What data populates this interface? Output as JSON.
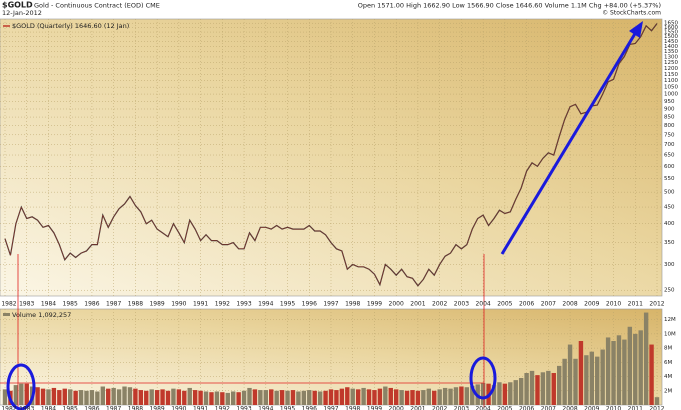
{
  "chart_data": [
    {
      "type": "line",
      "title": "$GOLD",
      "subtitle": "Gold - Continuous Contract (EOD) CME",
      "date": "12-Jan-2012",
      "quote": "Open 1571.00  High 1662.90  Low 1566.90  Close 1646.60  Volume 1.1M  Chg +84.00 (+5.37%)",
      "source": "© StockCharts.com",
      "x": [
        1982,
        1982.25,
        1982.5,
        1982.75,
        1983,
        1983.25,
        1983.5,
        1983.75,
        1984,
        1984.25,
        1984.5,
        1984.75,
        1985,
        1985.25,
        1985.5,
        1985.75,
        1986,
        1986.25,
        1986.5,
        1986.75,
        1987,
        1987.25,
        1987.5,
        1987.75,
        1988,
        1988.25,
        1988.5,
        1988.75,
        1989,
        1989.25,
        1989.5,
        1989.75,
        1990,
        1990.25,
        1990.5,
        1990.75,
        1991,
        1991.25,
        1991.5,
        1991.75,
        1992,
        1992.25,
        1992.5,
        1992.75,
        1993,
        1993.25,
        1993.5,
        1993.75,
        1994,
        1994.25,
        1994.5,
        1994.75,
        1995,
        1995.25,
        1995.5,
        1995.75,
        1996,
        1996.25,
        1996.5,
        1996.75,
        1997,
        1997.25,
        1997.5,
        1997.75,
        1998,
        1998.25,
        1998.5,
        1998.75,
        1999,
        1999.25,
        1999.5,
        1999.75,
        2000,
        2000.25,
        2000.5,
        2000.75,
        2001,
        2001.25,
        2001.5,
        2001.75,
        2002,
        2002.25,
        2002.5,
        2002.75,
        2003,
        2003.25,
        2003.5,
        2003.75,
        2004,
        2004.25,
        2004.5,
        2004.75,
        2005,
        2005.25,
        2005.5,
        2005.75,
        2006,
        2006.25,
        2006.5,
        2006.75,
        2007,
        2007.25,
        2007.5,
        2007.75,
        2008,
        2008.25,
        2008.5,
        2008.75,
        2009,
        2009.25,
        2009.5,
        2009.75,
        2010,
        2010.25,
        2010.5,
        2010.75,
        2011,
        2011.25,
        2011.5,
        2011.75,
        2012
      ],
      "series": [
        {
          "name": "$GOLD (Quarterly) 1646.60 (12 Jan)",
          "color": "#c0392b",
          "line_color": "#333333",
          "values": [
            360,
            320,
            400,
            450,
            415,
            420,
            410,
            390,
            395,
            375,
            345,
            310,
            325,
            315,
            325,
            330,
            345,
            345,
            425,
            390,
            420,
            445,
            460,
            485,
            455,
            435,
            400,
            410,
            385,
            375,
            365,
            400,
            375,
            350,
            410,
            385,
            355,
            370,
            355,
            355,
            345,
            345,
            350,
            335,
            335,
            375,
            355,
            390,
            390,
            385,
            395,
            385,
            390,
            385,
            385,
            385,
            395,
            380,
            380,
            370,
            350,
            335,
            330,
            290,
            300,
            295,
            295,
            290,
            280,
            260,
            300,
            290,
            278,
            290,
            275,
            272,
            258,
            270,
            290,
            278,
            300,
            318,
            325,
            345,
            335,
            345,
            385,
            415,
            425,
            395,
            415,
            440,
            430,
            435,
            475,
            515,
            580,
            615,
            600,
            635,
            660,
            650,
            740,
            835,
            915,
            930,
            870,
            880,
            920,
            925,
            1000,
            1090,
            1110,
            1240,
            1305,
            1420,
            1430,
            1500,
            1620,
            1565,
            1646.6
          ]
        }
      ],
      "xlim": [
        1982,
        2012
      ],
      "xticks": [
        1982,
        1983,
        1984,
        1985,
        1986,
        1987,
        1988,
        1989,
        1990,
        1991,
        1992,
        1993,
        1994,
        1995,
        1996,
        1997,
        1998,
        1999,
        2000,
        2001,
        2002,
        2003,
        2004,
        2005,
        2006,
        2007,
        2008,
        2009,
        2010,
        2011,
        2012
      ],
      "ylim": [
        240,
        1700
      ],
      "log_scale": true,
      "yticks": [
        250,
        300,
        350,
        400,
        450,
        500,
        550,
        600,
        650,
        700,
        750,
        800,
        850,
        900,
        950,
        1000,
        1050,
        1100,
        1150,
        1200,
        1250,
        1300,
        1350,
        1400,
        1450,
        1500,
        1550,
        1600,
        1650
      ],
      "grid": true
    },
    {
      "type": "bar",
      "x": [
        1982,
        1982.25,
        1982.5,
        1982.75,
        1983,
        1983.25,
        1983.5,
        1983.75,
        1984,
        1984.25,
        1984.5,
        1984.75,
        1985,
        1985.25,
        1985.5,
        1985.75,
        1986,
        1986.25,
        1986.5,
        1986.75,
        1987,
        1987.25,
        1987.5,
        1987.75,
        1988,
        1988.25,
        1988.5,
        1988.75,
        1989,
        1989.25,
        1989.5,
        1989.75,
        1990,
        1990.25,
        1990.5,
        1990.75,
        1991,
        1991.25,
        1991.5,
        1991.75,
        1992,
        1992.25,
        1992.5,
        1992.75,
        1993,
        1993.25,
        1993.5,
        1993.75,
        1994,
        1994.25,
        1994.5,
        1994.75,
        1995,
        1995.25,
        1995.5,
        1995.75,
        1996,
        1996.25,
        1996.5,
        1996.75,
        1997,
        1997.25,
        1997.5,
        1997.75,
        1998,
        1998.25,
        1998.5,
        1998.75,
        1999,
        1999.25,
        1999.5,
        1999.75,
        2000,
        2000.25,
        2000.5,
        2000.75,
        2001,
        2001.25,
        2001.5,
        2001.75,
        2002,
        2002.25,
        2002.5,
        2002.75,
        2003,
        2003.25,
        2003.5,
        2003.75,
        2004,
        2004.25,
        2004.5,
        2004.75,
        2005,
        2005.25,
        2005.5,
        2005.75,
        2006,
        2006.25,
        2006.5,
        2006.75,
        2007,
        2007.25,
        2007.5,
        2007.75,
        2008,
        2008.25,
        2008.5,
        2008.75,
        2009,
        2009.25,
        2009.5,
        2009.75,
        2010,
        2010.25,
        2010.5,
        2010.75,
        2011,
        2011.25,
        2011.5,
        2011.75,
        2012
      ],
      "series": [
        {
          "name": "Volume 1,092,257",
          "up_color": "#8a8266",
          "down_color": "#c0392b",
          "values": [
            2.2,
            2.0,
            2.8,
            3.0,
            3.0,
            2.6,
            2.5,
            2.3,
            2.2,
            2.4,
            2.1,
            2.3,
            2.2,
            2.0,
            2.1,
            2.0,
            2.1,
            1.9,
            2.6,
            2.3,
            2.4,
            2.2,
            2.6,
            2.5,
            2.3,
            2.1,
            2.0,
            2.2,
            2.1,
            2.2,
            2.0,
            2.3,
            2.2,
            2.0,
            2.4,
            2.1,
            2.0,
            1.9,
            1.8,
            1.9,
            1.8,
            1.7,
            1.9,
            1.8,
            2.0,
            2.4,
            2.2,
            2.1,
            2.1,
            2.2,
            2.0,
            2.1,
            2.0,
            2.1,
            1.9,
            2.0,
            2.1,
            2.0,
            1.9,
            2.0,
            2.2,
            2.1,
            2.3,
            2.5,
            2.3,
            2.2,
            2.4,
            2.2,
            2.1,
            2.3,
            2.6,
            2.4,
            2.2,
            2.1,
            2.0,
            2.1,
            2.0,
            2.1,
            2.3,
            2.0,
            2.2,
            2.4,
            2.3,
            2.5,
            2.6,
            2.5,
            2.7,
            2.9,
            3.1,
            3.0,
            2.8,
            3.2,
            3.0,
            3.2,
            3.5,
            3.8,
            4.5,
            4.8,
            4.2,
            4.6,
            4.8,
            4.5,
            5.5,
            6.5,
            8.5,
            6.5,
            9.0,
            7.0,
            7.5,
            6.8,
            7.8,
            9.5,
            9.0,
            9.8,
            9.2,
            11.0,
            10.0,
            10.5,
            13.0,
            8.5,
            1.1
          ]
        }
      ],
      "xlim": [
        1982,
        2012
      ],
      "xticks": [
        1982,
        1983,
        1984,
        1985,
        1986,
        1987,
        1988,
        1989,
        1990,
        1991,
        1992,
        1993,
        1994,
        1995,
        1996,
        1997,
        1998,
        1999,
        2000,
        2001,
        2002,
        2003,
        2004,
        2005,
        2006,
        2007,
        2008,
        2009,
        2010,
        2011,
        2012
      ],
      "ylim": [
        0,
        13.5
      ],
      "yticks": [
        {
          "value": 2,
          "label": "2M"
        },
        {
          "value": 4,
          "label": "4M"
        },
        {
          "value": 6,
          "label": "6M"
        },
        {
          "value": 8,
          "label": "8M"
        },
        {
          "value": 10,
          "label": "10M"
        },
        {
          "value": 12,
          "label": "12M"
        }
      ],
      "grid": true
    }
  ]
}
